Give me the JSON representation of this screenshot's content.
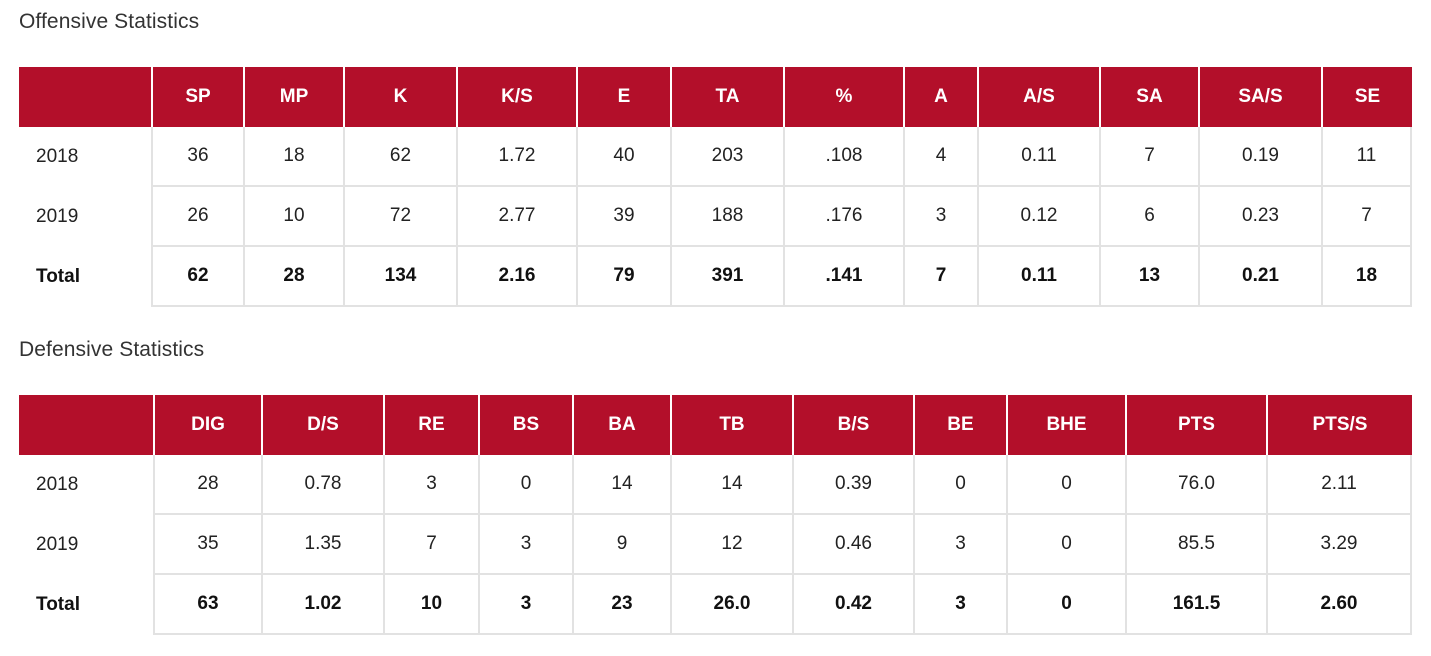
{
  "offensive": {
    "title": "Offensive Statistics",
    "columns": [
      "SP",
      "MP",
      "K",
      "K/S",
      "E",
      "TA",
      "%",
      "A",
      "A/S",
      "SA",
      "SA/S",
      "SE"
    ],
    "rows": [
      {
        "label": "2018",
        "values": [
          "36",
          "18",
          "62",
          "1.72",
          "40",
          "203",
          ".108",
          "4",
          "0.11",
          "7",
          "0.19",
          "11"
        ]
      },
      {
        "label": "2019",
        "values": [
          "26",
          "10",
          "72",
          "2.77",
          "39",
          "188",
          ".176",
          "3",
          "0.12",
          "6",
          "0.23",
          "7"
        ]
      },
      {
        "label": "Total",
        "values": [
          "62",
          "28",
          "134",
          "2.16",
          "79",
          "391",
          ".141",
          "7",
          "0.11",
          "13",
          "0.21",
          "18"
        ]
      }
    ]
  },
  "defensive": {
    "title": "Defensive Statistics",
    "columns": [
      "DIG",
      "D/S",
      "RE",
      "BS",
      "BA",
      "TB",
      "B/S",
      "BE",
      "BHE",
      "PTS",
      "PTS/S"
    ],
    "rows": [
      {
        "label": "2018",
        "values": [
          "28",
          "0.78",
          "3",
          "0",
          "14",
          "14",
          "0.39",
          "0",
          "0",
          "76.0",
          "2.11"
        ]
      },
      {
        "label": "2019",
        "values": [
          "35",
          "1.35",
          "7",
          "3",
          "9",
          "12",
          "0.46",
          "3",
          "0",
          "85.5",
          "3.29"
        ]
      },
      {
        "label": "Total",
        "values": [
          "63",
          "1.02",
          "10",
          "3",
          "23",
          "26.0",
          "0.42",
          "3",
          "0",
          "161.5",
          "2.60"
        ]
      }
    ]
  },
  "colors": {
    "header_bg": "#b30f2a",
    "header_text": "#ffffff",
    "grid": "#e2e2e2"
  }
}
